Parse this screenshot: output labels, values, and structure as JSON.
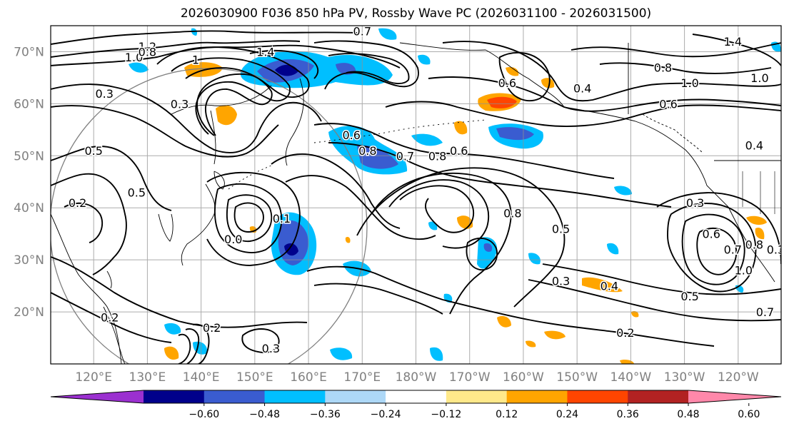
{
  "title": "2026030900 F036 850 hPa PV, Rossby Wave PC (2026031100 - 2026031500)",
  "map": {
    "projection": "PlateCarree (Pacific centred)",
    "lon_range": [
      112,
      248
    ],
    "lat_range": [
      10,
      75
    ],
    "lat_labels": [
      "20°N",
      "30°N",
      "40°N",
      "50°N",
      "60°N",
      "70°N"
    ],
    "lat_values": [
      20,
      30,
      40,
      50,
      60,
      70
    ],
    "lon_labels": [
      "120°E",
      "130°E",
      "140°E",
      "150°E",
      "160°E",
      "170°E",
      "180°W",
      "170°W",
      "160°W",
      "150°W",
      "140°W",
      "130°W",
      "120°W"
    ],
    "lon_values": [
      120,
      130,
      140,
      150,
      160,
      170,
      180,
      190,
      200,
      210,
      220,
      230,
      240
    ]
  },
  "colorbar": {
    "colors": [
      "#9b30d0",
      "#00008b",
      "#3a5cd0",
      "#00bfff",
      "#add8f7",
      "#ffffff",
      "#ffe98a",
      "#ffa500",
      "#ff4500",
      "#b22222",
      "#ff88aa"
    ],
    "tick_labels": [
      "−0.60",
      "−0.48",
      "−0.36",
      "−0.24",
      "−0.12",
      "0.12",
      "0.24",
      "0.36",
      "0.48",
      "0.60"
    ]
  },
  "contour_labels": [
    {
      "text": "1.2",
      "lon": 130,
      "lat": 71
    },
    {
      "text": "1.0",
      "lon": 127.5,
      "lat": 69
    },
    {
      "text": "0.8",
      "lon": 130,
      "lat": 70
    },
    {
      "text": "1.4",
      "lon": 152,
      "lat": 70
    },
    {
      "text": "1",
      "lon": 139,
      "lat": 68.5
    },
    {
      "text": "0.7",
      "lon": 170,
      "lat": 74
    },
    {
      "text": "0.3",
      "lon": 122,
      "lat": 62
    },
    {
      "text": "0.3",
      "lon": 136,
      "lat": 60
    },
    {
      "text": "0.6",
      "lon": 168,
      "lat": 54
    },
    {
      "text": "0.8",
      "lon": 171,
      "lat": 51
    },
    {
      "text": "0.7",
      "lon": 178,
      "lat": 50
    },
    {
      "text": "0.8",
      "lon": 184,
      "lat": 50
    },
    {
      "text": "0.6",
      "lon": 188,
      "lat": 51
    },
    {
      "text": "0.5",
      "lon": 120,
      "lat": 51
    },
    {
      "text": "0.5",
      "lon": 128,
      "lat": 43
    },
    {
      "text": "0.2",
      "lon": 117,
      "lat": 41
    },
    {
      "text": "0.1",
      "lon": 155,
      "lat": 38
    },
    {
      "text": "0.0",
      "lon": 146,
      "lat": 34
    },
    {
      "text": "0.8",
      "lon": 198,
      "lat": 39
    },
    {
      "text": "0.5",
      "lon": 207,
      "lat": 36
    },
    {
      "text": "0.3",
      "lon": 232,
      "lat": 41
    },
    {
      "text": "0.6",
      "lon": 235,
      "lat": 35
    },
    {
      "text": "0.7",
      "lon": 239,
      "lat": 32
    },
    {
      "text": "0.8",
      "lon": 243,
      "lat": 33
    },
    {
      "text": "1.0",
      "lon": 241,
      "lat": 28
    },
    {
      "text": "0.3",
      "lon": 247,
      "lat": 32
    },
    {
      "text": "0.3",
      "lon": 207,
      "lat": 26
    },
    {
      "text": "0.4",
      "lon": 216,
      "lat": 25
    },
    {
      "text": "0.5",
      "lon": 231,
      "lat": 23
    },
    {
      "text": "0.7",
      "lon": 245,
      "lat": 20
    },
    {
      "text": "0.2",
      "lon": 219,
      "lat": 16
    },
    {
      "text": "0.2",
      "lon": 123,
      "lat": 19
    },
    {
      "text": "0.2",
      "lon": 142,
      "lat": 17
    },
    {
      "text": "0.3",
      "lon": 153,
      "lat": 13
    },
    {
      "text": "1.0",
      "lon": 231,
      "lat": 64
    },
    {
      "text": "0.8",
      "lon": 226,
      "lat": 67
    },
    {
      "text": "0.6",
      "lon": 227,
      "lat": 60
    },
    {
      "text": "1.4",
      "lon": 239,
      "lat": 72
    },
    {
      "text": "1.0",
      "lon": 244,
      "lat": 65
    },
    {
      "text": "0.4",
      "lon": 243,
      "lat": 52
    },
    {
      "text": "0.6",
      "lon": 197,
      "lat": 64
    },
    {
      "text": "0.4",
      "lon": 211,
      "lat": 63
    }
  ]
}
